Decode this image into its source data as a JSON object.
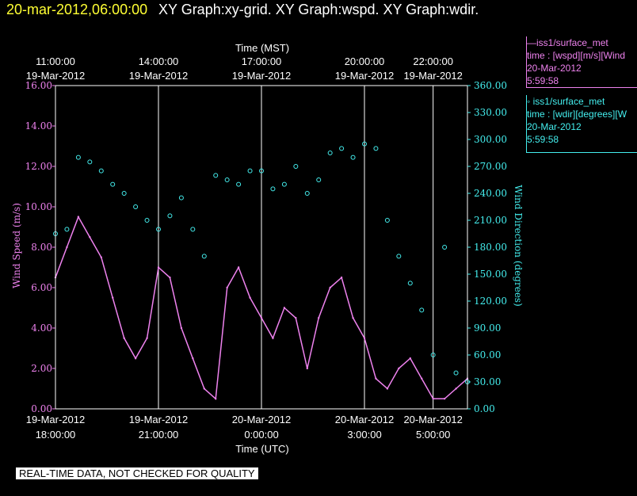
{
  "header": {
    "datetime": "20-mar-2012,06:00:00",
    "graphs": "XY Graph:xy-grid.  XY Graph:wspd.  XY Graph:wdir."
  },
  "colors": {
    "wspd": "#ee82ee",
    "wdir": "#44eeee",
    "grid": "#ffffff",
    "date": "#ffff33"
  },
  "legend": [
    {
      "line1": "—iss1/surface_met",
      "line2": "time : [wspd][m/s][Wind",
      "line3": "20-Mar-2012",
      "line4": "5:59:58"
    },
    {
      "line1": "◦ iss1/surface_met",
      "line2": "time : [wdir][degrees][W",
      "line3": "20-Mar-2012",
      "line4": "5:59:58"
    }
  ],
  "disclaimer": "REAL-TIME DATA, NOT CHECKED FOR QUALITY",
  "chart_data": {
    "type": "line",
    "x_title_top": "Time (MST)",
    "x_title_bottom": "Time (UTC)",
    "xlabel": "Time (UTC)",
    "ylabel_left": "Wind Speed (m/s)",
    "ylabel_right": "Wind Direction (degrees)",
    "x_range_hours_utc": [
      "19-Mar-2012 18:00",
      "20-Mar-2012 06:00"
    ],
    "ylim_left": [
      0,
      16
    ],
    "ylim_right": [
      0,
      360
    ],
    "yticks_left": [
      "0.00",
      "2.00",
      "4.00",
      "6.00",
      "8.00",
      "10.00",
      "12.00",
      "14.00",
      "16.00"
    ],
    "yticks_right": [
      "0.00",
      "30.00",
      "60.00",
      "90.00",
      "120.00",
      "150.00",
      "180.00",
      "210.00",
      "240.00",
      "270.00",
      "300.00",
      "330.00",
      "360.00"
    ],
    "xticks_top": [
      {
        "t": "19-Mar-2012 18:00",
        "time": "11:00:00",
        "date": "19-Mar-2012"
      },
      {
        "t": "19-Mar-2012 21:00",
        "time": "14:00:00",
        "date": "19-Mar-2012"
      },
      {
        "t": "20-Mar-2012 00:00",
        "time": "17:00:00",
        "date": "19-Mar-2012"
      },
      {
        "t": "20-Mar-2012 03:00",
        "time": "20:00:00",
        "date": "19-Mar-2012"
      },
      {
        "t": "20-Mar-2012 05:00",
        "time": "22:00:00",
        "date": "19-Mar-2012"
      }
    ],
    "xticks_bottom": [
      {
        "t": "19-Mar-2012 18:00",
        "date": "19-Mar-2012",
        "time": "18:00:00"
      },
      {
        "t": "19-Mar-2012 21:00",
        "date": "19-Mar-2012",
        "time": "21:00:00"
      },
      {
        "t": "20-Mar-2012 00:00",
        "date": "20-Mar-2012",
        "time": "0:00:00"
      },
      {
        "t": "20-Mar-2012 03:00",
        "date": "20-Mar-2012",
        "time": "3:00:00"
      },
      {
        "t": "20-Mar-2012 05:00",
        "date": "20-Mar-2012",
        "time": "5:00:00"
      }
    ],
    "series": [
      {
        "name": "iss1/surface_met time : [wspd][m/s]",
        "axis": "left",
        "style": "line",
        "x": [
          "19-Mar-2012 18:00",
          "19-Mar-2012 18:20",
          "19-Mar-2012 18:40",
          "19-Mar-2012 19:00",
          "19-Mar-2012 19:20",
          "19-Mar-2012 19:40",
          "19-Mar-2012 20:00",
          "19-Mar-2012 20:20",
          "19-Mar-2012 20:40",
          "19-Mar-2012 21:00",
          "19-Mar-2012 21:20",
          "19-Mar-2012 21:40",
          "19-Mar-2012 22:00",
          "19-Mar-2012 22:20",
          "19-Mar-2012 22:40",
          "19-Mar-2012 23:00",
          "19-Mar-2012 23:20",
          "19-Mar-2012 23:40",
          "20-Mar-2012 00:00",
          "20-Mar-2012 00:20",
          "20-Mar-2012 00:40",
          "20-Mar-2012 01:00",
          "20-Mar-2012 01:20",
          "20-Mar-2012 01:40",
          "20-Mar-2012 02:00",
          "20-Mar-2012 02:20",
          "20-Mar-2012 02:40",
          "20-Mar-2012 03:00",
          "20-Mar-2012 03:20",
          "20-Mar-2012 03:40",
          "20-Mar-2012 04:00",
          "20-Mar-2012 04:20",
          "20-Mar-2012 04:40",
          "20-Mar-2012 05:00",
          "20-Mar-2012 05:20",
          "20-Mar-2012 05:40",
          "20-Mar-2012 06:00"
        ],
        "y": [
          6.5,
          8.0,
          9.5,
          8.5,
          7.5,
          5.5,
          3.5,
          2.5,
          3.5,
          7.0,
          6.5,
          4.0,
          2.5,
          1.0,
          0.5,
          6.0,
          7.0,
          5.5,
          4.5,
          3.5,
          5.0,
          4.5,
          2.0,
          4.5,
          6.0,
          6.5,
          4.5,
          3.5,
          1.5,
          1.0,
          2.0,
          2.5,
          1.5,
          0.5,
          0.5,
          1.0,
          1.5
        ]
      },
      {
        "name": "iss1/surface_met time : [wdir][degrees]",
        "axis": "right",
        "style": "markers",
        "x": [
          "19-Mar-2012 18:00",
          "19-Mar-2012 18:20",
          "19-Mar-2012 18:40",
          "19-Mar-2012 19:00",
          "19-Mar-2012 19:20",
          "19-Mar-2012 19:40",
          "19-Mar-2012 20:00",
          "19-Mar-2012 20:20",
          "19-Mar-2012 20:40",
          "19-Mar-2012 21:00",
          "19-Mar-2012 21:20",
          "19-Mar-2012 21:40",
          "19-Mar-2012 22:00",
          "19-Mar-2012 22:20",
          "19-Mar-2012 22:40",
          "19-Mar-2012 23:00",
          "19-Mar-2012 23:20",
          "19-Mar-2012 23:40",
          "20-Mar-2012 00:00",
          "20-Mar-2012 00:20",
          "20-Mar-2012 00:40",
          "20-Mar-2012 01:00",
          "20-Mar-2012 01:20",
          "20-Mar-2012 01:40",
          "20-Mar-2012 02:00",
          "20-Mar-2012 02:20",
          "20-Mar-2012 02:40",
          "20-Mar-2012 03:00",
          "20-Mar-2012 03:20",
          "20-Mar-2012 03:40",
          "20-Mar-2012 04:00",
          "20-Mar-2012 04:20",
          "20-Mar-2012 04:40",
          "20-Mar-2012 05:00",
          "20-Mar-2012 05:20",
          "20-Mar-2012 05:40",
          "20-Mar-2012 06:00"
        ],
        "y": [
          195,
          200,
          280,
          275,
          265,
          250,
          240,
          225,
          210,
          200,
          215,
          235,
          200,
          170,
          260,
          255,
          250,
          265,
          265,
          245,
          250,
          270,
          240,
          255,
          285,
          290,
          280,
          295,
          290,
          210,
          170,
          140,
          110,
          60,
          180,
          40,
          30
        ]
      }
    ],
    "grid": true,
    "legend": "right-top"
  }
}
